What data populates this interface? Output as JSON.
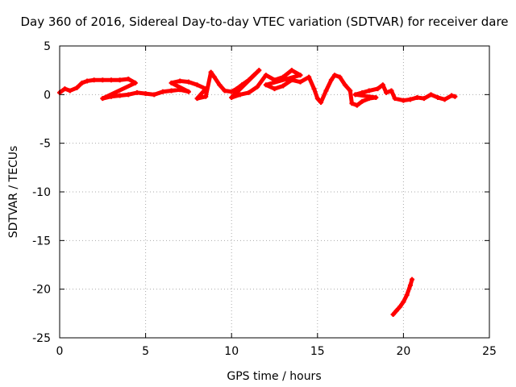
{
  "chart_data": {
    "type": "scatter",
    "title": "Day 360 of 2016, Sidereal Day-to-day VTEC variation (SDTVAR) for receiver dare",
    "xlabel": "GPS time / hours",
    "ylabel": "SDTVAR / TECUs",
    "xlim": [
      0,
      25
    ],
    "ylim": [
      -25,
      5
    ],
    "x_ticks": [
      "0",
      "5",
      "10",
      "15",
      "20",
      "25"
    ],
    "y_ticks": [
      "5",
      "0",
      "-5",
      "-10",
      "-15",
      "-20",
      "-25"
    ],
    "grid": true,
    "color": "#ff0000",
    "series": [
      {
        "name": "main",
        "points": [
          [
            0.0,
            0.2
          ],
          [
            0.3,
            0.6
          ],
          [
            0.6,
            0.4
          ],
          [
            1.0,
            0.7
          ],
          [
            1.3,
            1.2
          ],
          [
            1.6,
            1.4
          ],
          [
            2.0,
            1.5
          ],
          [
            2.5,
            1.5
          ],
          [
            3.0,
            1.5
          ],
          [
            3.5,
            1.5
          ],
          [
            4.0,
            1.6
          ],
          [
            4.4,
            1.2
          ],
          [
            2.5,
            -0.4
          ],
          [
            3.0,
            -0.2
          ],
          [
            3.5,
            -0.1
          ],
          [
            4.0,
            0.0
          ],
          [
            4.5,
            0.2
          ],
          [
            5.0,
            0.1
          ],
          [
            5.5,
            0.0
          ],
          [
            6.0,
            0.3
          ],
          [
            6.5,
            0.4
          ],
          [
            7.0,
            0.5
          ],
          [
            7.5,
            0.3
          ],
          [
            6.5,
            1.2
          ],
          [
            7.0,
            1.4
          ],
          [
            7.5,
            1.3
          ],
          [
            8.0,
            1.0
          ],
          [
            8.5,
            0.6
          ],
          [
            8.0,
            -0.4
          ],
          [
            8.5,
            -0.2
          ],
          [
            8.8,
            2.3
          ],
          [
            9.0,
            1.8
          ],
          [
            9.3,
            1.0
          ],
          [
            9.6,
            0.4
          ],
          [
            10.0,
            0.3
          ],
          [
            10.3,
            0.6
          ],
          [
            10.6,
            1.0
          ],
          [
            11.0,
            1.5
          ],
          [
            11.3,
            2.0
          ],
          [
            11.6,
            2.5
          ],
          [
            10.0,
            -0.3
          ],
          [
            10.5,
            0.0
          ],
          [
            11.0,
            0.2
          ],
          [
            11.5,
            0.8
          ],
          [
            12.0,
            2.0
          ],
          [
            12.5,
            1.5
          ],
          [
            13.0,
            1.8
          ],
          [
            13.5,
            2.5
          ],
          [
            14.0,
            2.0
          ],
          [
            12.0,
            1.0
          ],
          [
            12.5,
            0.6
          ],
          [
            13.0,
            0.9
          ],
          [
            13.5,
            1.5
          ],
          [
            14.0,
            1.3
          ],
          [
            14.5,
            1.8
          ],
          [
            14.8,
            0.6
          ],
          [
            15.0,
            -0.4
          ],
          [
            15.2,
            -0.8
          ],
          [
            15.5,
            0.4
          ],
          [
            15.8,
            1.5
          ],
          [
            16.0,
            2.0
          ],
          [
            16.3,
            1.8
          ],
          [
            16.6,
            1.0
          ],
          [
            16.9,
            0.4
          ],
          [
            17.0,
            -0.9
          ],
          [
            17.3,
            -1.1
          ],
          [
            17.6,
            -0.7
          ],
          [
            18.0,
            -0.4
          ],
          [
            18.4,
            -0.3
          ],
          [
            17.2,
            0.0
          ],
          [
            17.6,
            0.2
          ],
          [
            18.0,
            0.4
          ],
          [
            18.5,
            0.6
          ],
          [
            18.8,
            1.0
          ],
          [
            19.0,
            0.2
          ],
          [
            19.3,
            0.4
          ],
          [
            19.5,
            -0.4
          ],
          [
            20.0,
            -0.6
          ],
          [
            20.4,
            -0.5
          ],
          [
            20.8,
            -0.3
          ],
          [
            21.2,
            -0.4
          ],
          [
            21.6,
            0.0
          ],
          [
            22.0,
            -0.3
          ],
          [
            22.4,
            -0.5
          ],
          [
            22.8,
            -0.1
          ],
          [
            23.0,
            -0.2
          ]
        ]
      },
      {
        "name": "lower",
        "points": [
          [
            19.4,
            -22.6
          ],
          [
            19.6,
            -22.2
          ],
          [
            19.8,
            -21.8
          ],
          [
            20.0,
            -21.3
          ],
          [
            20.2,
            -20.6
          ],
          [
            20.4,
            -19.6
          ],
          [
            20.5,
            -19.0
          ]
        ]
      }
    ]
  }
}
